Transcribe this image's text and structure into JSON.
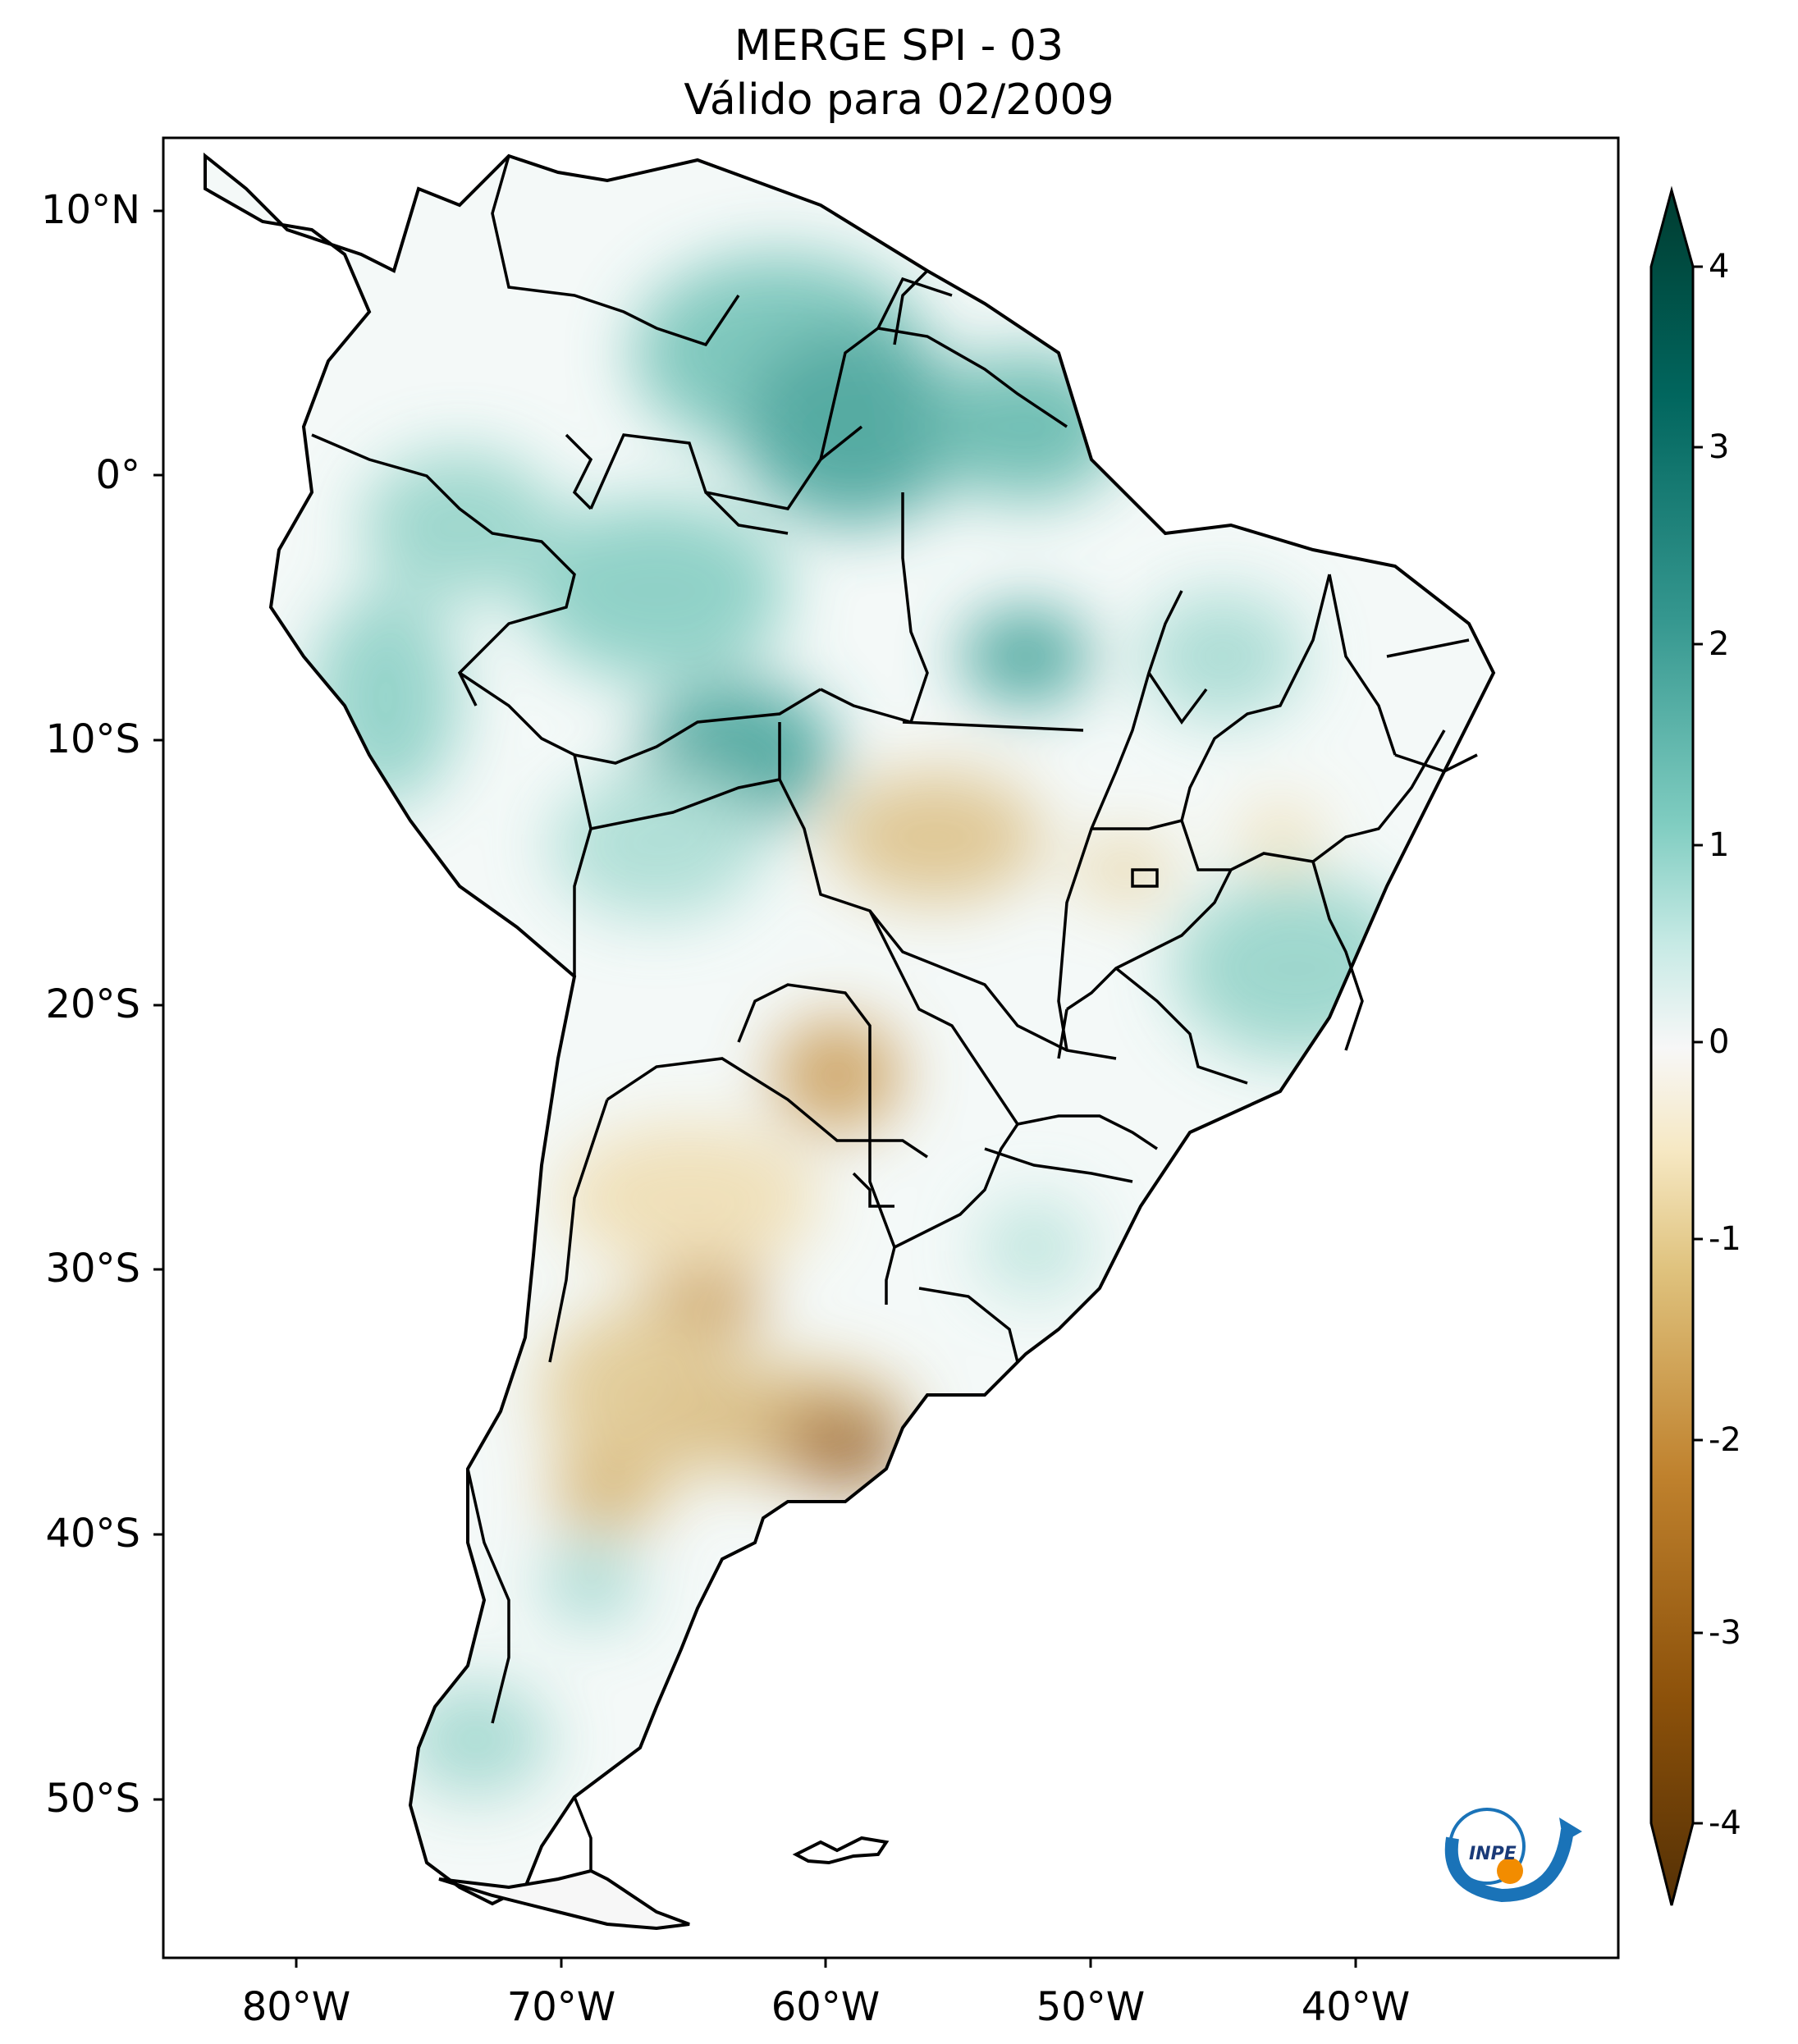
{
  "header": {
    "title": "MERGE   SPI - 03",
    "subtitle": "Válido para 02/2009"
  },
  "axes": {
    "lat_labels": [
      "10°N",
      "0°",
      "10°S",
      "20°S",
      "30°S",
      "40°S",
      "50°S"
    ],
    "lon_labels": [
      "80°W",
      "70°W",
      "60°W",
      "50°W",
      "40°W"
    ]
  },
  "colorbar": {
    "ticks": [
      "4",
      "3",
      "2",
      "1",
      "0",
      "-1",
      "-2",
      "-3",
      "-4"
    ],
    "colors": [
      "#543005",
      "#8c510a",
      "#bf812d",
      "#dfc27d",
      "#f6e8c3",
      "#f5f5f5",
      "#c7eae5",
      "#80cdc1",
      "#35978f",
      "#01665e",
      "#003c30"
    ]
  },
  "logo": {
    "text": "INPE"
  }
}
